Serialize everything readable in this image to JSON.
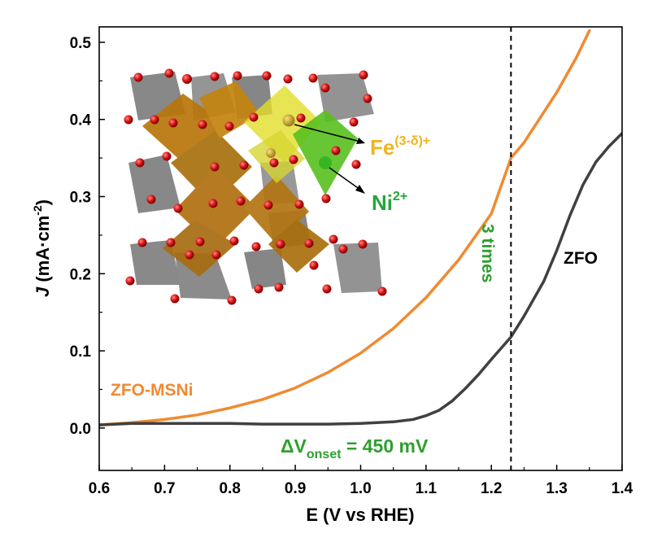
{
  "chart_data": {
    "type": "line",
    "xlabel": "E (V vs RHE)",
    "ylabel": {
      "prefix": "J",
      "body": " (mA·cm",
      "sup": "-2",
      "suffix": ")"
    },
    "xlim": [
      0.6,
      1.4
    ],
    "ylim": [
      -0.055,
      0.52
    ],
    "xticks": [
      "0.6",
      "0.7",
      "0.8",
      "0.9",
      "1.0",
      "1.1",
      "1.2",
      "1.3",
      "1.4"
    ],
    "yticks": [
      "0.0",
      "0.1",
      "0.2",
      "0.3",
      "0.4",
      "0.5"
    ],
    "grid": false,
    "series": [
      {
        "name": "ZFO-MSNi",
        "color": "#f08a32",
        "points": [
          [
            0.6,
            0.004
          ],
          [
            0.65,
            0.007
          ],
          [
            0.7,
            0.011
          ],
          [
            0.75,
            0.017
          ],
          [
            0.8,
            0.026
          ],
          [
            0.85,
            0.037
          ],
          [
            0.9,
            0.052
          ],
          [
            0.95,
            0.072
          ],
          [
            1.0,
            0.097
          ],
          [
            1.05,
            0.129
          ],
          [
            1.1,
            0.169
          ],
          [
            1.15,
            0.218
          ],
          [
            1.2,
            0.278
          ],
          [
            1.23,
            0.35
          ],
          [
            1.25,
            0.37
          ],
          [
            1.3,
            0.435
          ],
          [
            1.33,
            0.48
          ],
          [
            1.35,
            0.515
          ]
        ]
      },
      {
        "name": "ZFO",
        "color": "#404040",
        "points": [
          [
            0.6,
            0.004
          ],
          [
            0.65,
            0.006
          ],
          [
            0.7,
            0.006
          ],
          [
            0.75,
            0.006
          ],
          [
            0.8,
            0.006
          ],
          [
            0.85,
            0.005
          ],
          [
            0.9,
            0.005
          ],
          [
            0.95,
            0.005
          ],
          [
            1.0,
            0.006
          ],
          [
            1.05,
            0.008
          ],
          [
            1.08,
            0.011
          ],
          [
            1.1,
            0.016
          ],
          [
            1.12,
            0.023
          ],
          [
            1.14,
            0.035
          ],
          [
            1.16,
            0.051
          ],
          [
            1.18,
            0.069
          ],
          [
            1.2,
            0.089
          ],
          [
            1.23,
            0.118
          ],
          [
            1.25,
            0.145
          ],
          [
            1.28,
            0.19
          ],
          [
            1.3,
            0.23
          ],
          [
            1.32,
            0.275
          ],
          [
            1.34,
            0.315
          ],
          [
            1.36,
            0.345
          ],
          [
            1.38,
            0.365
          ],
          [
            1.4,
            0.382
          ]
        ]
      }
    ],
    "vline": {
      "x": 1.23,
      "style": "dashed"
    },
    "annotations": {
      "zfo_label": "ZFO",
      "msni_label": "ZFO-MSNi",
      "three_times": "3 times",
      "delta_v": {
        "main": "ΔV",
        "sub": "onset",
        "rest": " = 450 mV"
      },
      "fe_label": {
        "main": "Fe",
        "sup": "(3-δ)+"
      },
      "ni_label": {
        "main": "Ni",
        "sup": "2+"
      }
    },
    "colors": {
      "orange": "#f08a32",
      "dark": "#404040",
      "green": "#2ea02e",
      "fe": "#f0b41e",
      "ni": "#23a63a"
    }
  }
}
